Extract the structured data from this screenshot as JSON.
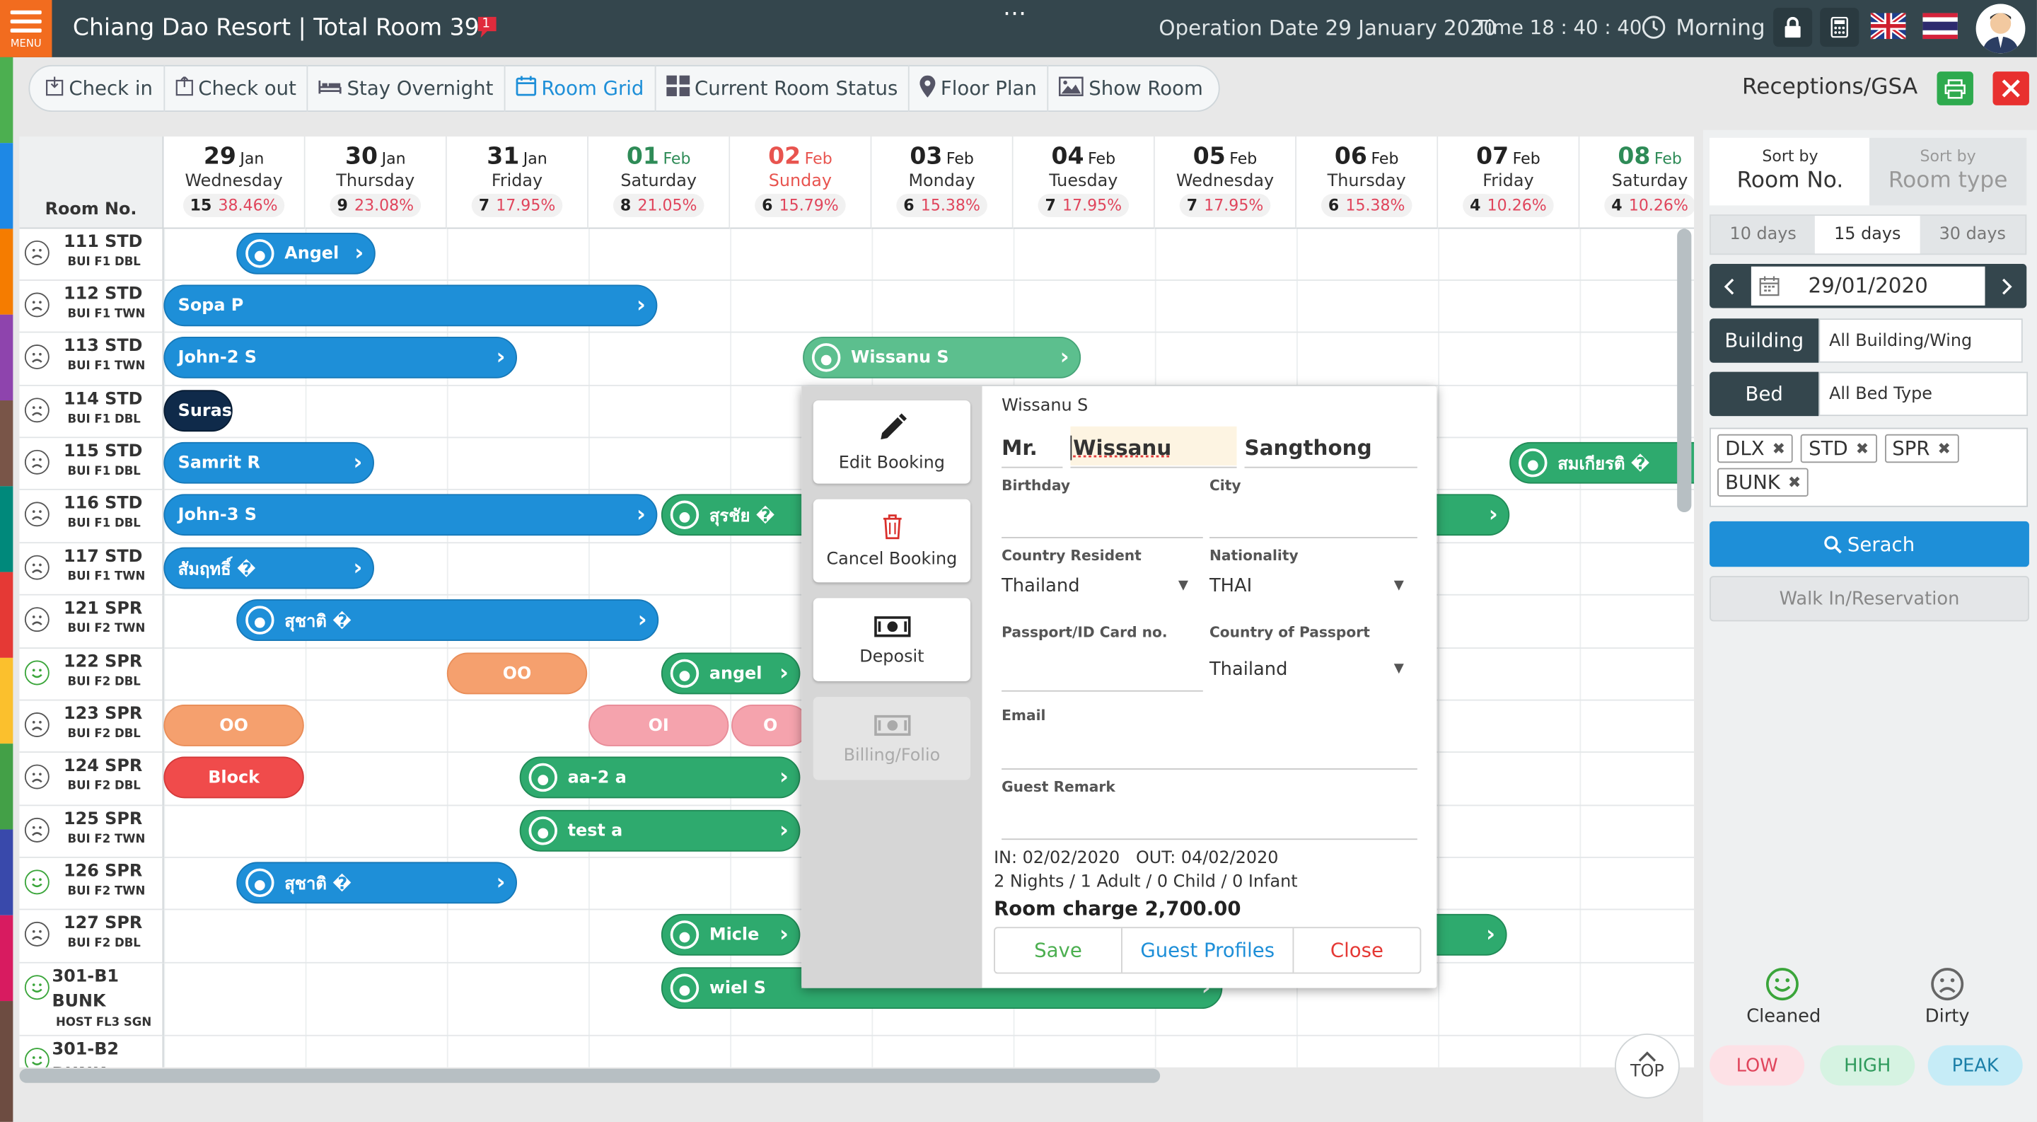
{
  "header": {
    "menu_label": "MENU",
    "title": "Chiang Dao Resort | Total Room 39",
    "notif_count": "1",
    "more": "⋯",
    "operation_date": "Operation Date 29 January 2020",
    "time": "Time 18 : 40 : 40",
    "shift": "Morning",
    "role": "Receptions/GSA"
  },
  "toolbar": {
    "items": [
      {
        "label": "Check in",
        "icon": "check-in-icon"
      },
      {
        "label": "Check out",
        "icon": "check-out-icon"
      },
      {
        "label": "Stay Overnight",
        "icon": "bed-icon"
      },
      {
        "label": "Room Grid",
        "icon": "calendar-icon"
      },
      {
        "label": "Current Room Status",
        "icon": "grid-icon"
      },
      {
        "label": "Floor Plan",
        "icon": "map-pin-icon"
      },
      {
        "label": "Show Room",
        "icon": "image-icon"
      }
    ],
    "active": "Room Grid"
  },
  "grid": {
    "corner_label": "Room No.",
    "dates": [
      {
        "day": "29",
        "month": "Jan",
        "weekday": "Wednesday",
        "rooms": "15",
        "pct": "38.46%",
        "kind": "normal"
      },
      {
        "day": "30",
        "month": "Jan",
        "weekday": "Thursday",
        "rooms": "9",
        "pct": "23.08%",
        "kind": "normal"
      },
      {
        "day": "31",
        "month": "Jan",
        "weekday": "Friday",
        "rooms": "7",
        "pct": "17.95%",
        "kind": "normal"
      },
      {
        "day": "01",
        "month": "Feb",
        "weekday": "Saturday",
        "rooms": "8",
        "pct": "21.05%",
        "kind": "wk"
      },
      {
        "day": "02",
        "month": "Feb",
        "weekday": "Sunday",
        "rooms": "6",
        "pct": "15.79%",
        "kind": "sun"
      },
      {
        "day": "03",
        "month": "Feb",
        "weekday": "Monday",
        "rooms": "6",
        "pct": "15.38%",
        "kind": "normal"
      },
      {
        "day": "04",
        "month": "Feb",
        "weekday": "Tuesday",
        "rooms": "7",
        "pct": "17.95%",
        "kind": "normal"
      },
      {
        "day": "05",
        "month": "Feb",
        "weekday": "Wednesday",
        "rooms": "7",
        "pct": "17.95%",
        "kind": "normal"
      },
      {
        "day": "06",
        "month": "Feb",
        "weekday": "Thursday",
        "rooms": "6",
        "pct": "15.38%",
        "kind": "normal"
      },
      {
        "day": "07",
        "month": "Feb",
        "weekday": "Friday",
        "rooms": "4",
        "pct": "10.26%",
        "kind": "normal"
      },
      {
        "day": "08",
        "month": "Feb",
        "weekday": "Saturday",
        "rooms": "4",
        "pct": "10.26%",
        "kind": "wk"
      }
    ],
    "rooms": [
      {
        "no": "111 STD",
        "type": "BUI F1 DBL",
        "status": "dirty"
      },
      {
        "no": "112 STD",
        "type": "BUI F1 TWN",
        "status": "dirty"
      },
      {
        "no": "113 STD",
        "type": "BUI F1 TWN",
        "status": "dirty"
      },
      {
        "no": "114 STD",
        "type": "BUI F1 DBL",
        "status": "dirty"
      },
      {
        "no": "115 STD",
        "type": "BUI F1 DBL",
        "status": "dirty"
      },
      {
        "no": "116 STD",
        "type": "BUI F1 DBL",
        "status": "dirty"
      },
      {
        "no": "117 STD",
        "type": "BUI F1 TWN",
        "status": "dirty"
      },
      {
        "no": "121 SPR",
        "type": "BUI F2 TWN",
        "status": "dirty"
      },
      {
        "no": "122 SPR",
        "type": "BUI F2 DBL",
        "status": "clean"
      },
      {
        "no": "123 SPR",
        "type": "BUI F2 DBL",
        "status": "dirty"
      },
      {
        "no": "124 SPR",
        "type": "BUI F2 DBL",
        "status": "dirty"
      },
      {
        "no": "125 SPR",
        "type": "BUI F2 TWN",
        "status": "dirty"
      },
      {
        "no": "126 SPR",
        "type": "BUI F2 TWN",
        "status": "clean"
      },
      {
        "no": "127 SPR",
        "type": "BUI F2 DBL",
        "status": "dirty"
      },
      {
        "no": "301-B1",
        "no2": "BUNK",
        "type": "HOST FL3 SGN",
        "status": "clean"
      },
      {
        "no": "301-B2",
        "no2": "BUNK",
        "type": "",
        "status": "clean"
      }
    ],
    "bookings": [
      {
        "row": 0,
        "label": "Angel",
        "color": "blue",
        "avatar": true,
        "arrow": true
      },
      {
        "row": 1,
        "label": "Sopa P",
        "color": "blue",
        "avatar": false,
        "arrow": true
      },
      {
        "row": 2,
        "label": "John-2 S",
        "color": "blue",
        "avatar": false,
        "arrow": true
      },
      {
        "row": 2,
        "label": "Wissanu S",
        "color": "lgreen",
        "avatar": true,
        "arrow": true
      },
      {
        "row": 3,
        "label": "Suras",
        "color": "navy",
        "avatar": false,
        "arrow": false
      },
      {
        "row": 4,
        "label": "Samrit R",
        "color": "blue",
        "avatar": false,
        "arrow": true
      },
      {
        "row": 4,
        "label": "สมเกียรติ �",
        "color": "green",
        "avatar": true,
        "arrow": false
      },
      {
        "row": 5,
        "label": "John-3 S",
        "color": "blue",
        "avatar": false,
        "arrow": true
      },
      {
        "row": 5,
        "label": "สุรชัย �",
        "color": "green",
        "avatar": true,
        "arrow": false
      },
      {
        "row": 5,
        "label": "",
        "color": "green",
        "avatar": false,
        "arrow": true
      },
      {
        "row": 6,
        "label": "สัมฤทธิ์ �",
        "color": "blue",
        "avatar": false,
        "arrow": true
      },
      {
        "row": 7,
        "label": "สุชาติ �",
        "color": "blue",
        "avatar": true,
        "arrow": true
      },
      {
        "row": 8,
        "label": "OO",
        "color": "orange",
        "avatar": false,
        "arrow": false
      },
      {
        "row": 8,
        "label": "angel",
        "color": "green",
        "avatar": true,
        "arrow": true
      },
      {
        "row": 9,
        "label": "OO",
        "color": "orange",
        "avatar": false,
        "arrow": false
      },
      {
        "row": 9,
        "label": "OI",
        "color": "pink",
        "avatar": false,
        "arrow": false
      },
      {
        "row": 9,
        "label": "O",
        "color": "pink",
        "avatar": false,
        "arrow": false
      },
      {
        "row": 10,
        "label": "Block",
        "color": "red",
        "avatar": false,
        "arrow": false
      },
      {
        "row": 10,
        "label": "aa-2 a",
        "color": "green",
        "avatar": true,
        "arrow": true
      },
      {
        "row": 11,
        "label": "test a",
        "color": "green",
        "avatar": true,
        "arrow": true
      },
      {
        "row": 12,
        "label": "สุชาติ �",
        "color": "blue",
        "avatar": true,
        "arrow": true
      },
      {
        "row": 13,
        "label": "Micle",
        "color": "green",
        "avatar": true,
        "arrow": true
      },
      {
        "row": 13,
        "label": "",
        "color": "green",
        "avatar": false,
        "arrow": true
      },
      {
        "row": 14,
        "label": "wiel S",
        "color": "green",
        "avatar": true,
        "arrow": true
      }
    ],
    "top_label": "TOP"
  },
  "popup": {
    "actions": [
      {
        "label": "Edit Booking",
        "icon": "pencil-icon",
        "enabled": true
      },
      {
        "label": "Cancel Booking",
        "icon": "trash-icon",
        "enabled": true
      },
      {
        "label": "Deposit",
        "icon": "money-icon",
        "enabled": true
      },
      {
        "label": "Billing/Folio",
        "icon": "money-icon",
        "enabled": false
      }
    ],
    "guest_name": "Wissanu S",
    "title": "Mr.",
    "first_name": "Wissanu",
    "last_name": "Sangthong",
    "birthday_label": "Birthday",
    "birthday": "",
    "city_label": "City",
    "city": "",
    "country_resident_label": "Country Resident",
    "country_resident": "Thailand",
    "nationality_label": "Nationality",
    "nationality": "THAI",
    "passport_label": "Passport/ID Card no.",
    "passport": "",
    "country_passport_label": "Country of Passport",
    "country_passport": "Thailand",
    "email_label": "Email",
    "email": "",
    "remark_label": "Guest Remark",
    "remark": "",
    "in_out": "IN: 02/02/2020   OUT: 04/02/2020",
    "stay": "2 Nights / 1 Adult / 0 Child / 0 Infant",
    "charge": "Room charge 2,700.00",
    "save": "Save",
    "profiles": "Guest Profiles",
    "close": "Close"
  },
  "panel": {
    "sort_by": "Sort by",
    "sort_room_no": "Room No.",
    "sort_room_type": "Room type",
    "ranges": [
      "10 days",
      "15 days",
      "30 days"
    ],
    "active_range": "15 days",
    "date": "29/01/2020",
    "building_label": "Building",
    "building_value": "All Building/Wing",
    "bed_label": "Bed",
    "bed_value": "All Bed Type",
    "tags": [
      "DLX",
      "STD",
      "SPR",
      "BUNK"
    ],
    "search": "Serach",
    "walkin": "Walk In/Reservation",
    "cleaned": "Cleaned",
    "dirty": "Dirty",
    "legend": [
      {
        "label": "LOW",
        "bg": "#fde1e6",
        "fg": "#e0455c"
      },
      {
        "label": "HIGH",
        "bg": "#d6f3e2",
        "fg": "#2e9a5c"
      },
      {
        "label": "PEAK",
        "bg": "#c6ecf7",
        "fg": "#1b7fa8"
      }
    ]
  },
  "colors": {
    "topbar": "#34464d",
    "accent": "#1e8fd8",
    "booking_green": "#2eaa6e",
    "menu": "#f26c1f"
  }
}
